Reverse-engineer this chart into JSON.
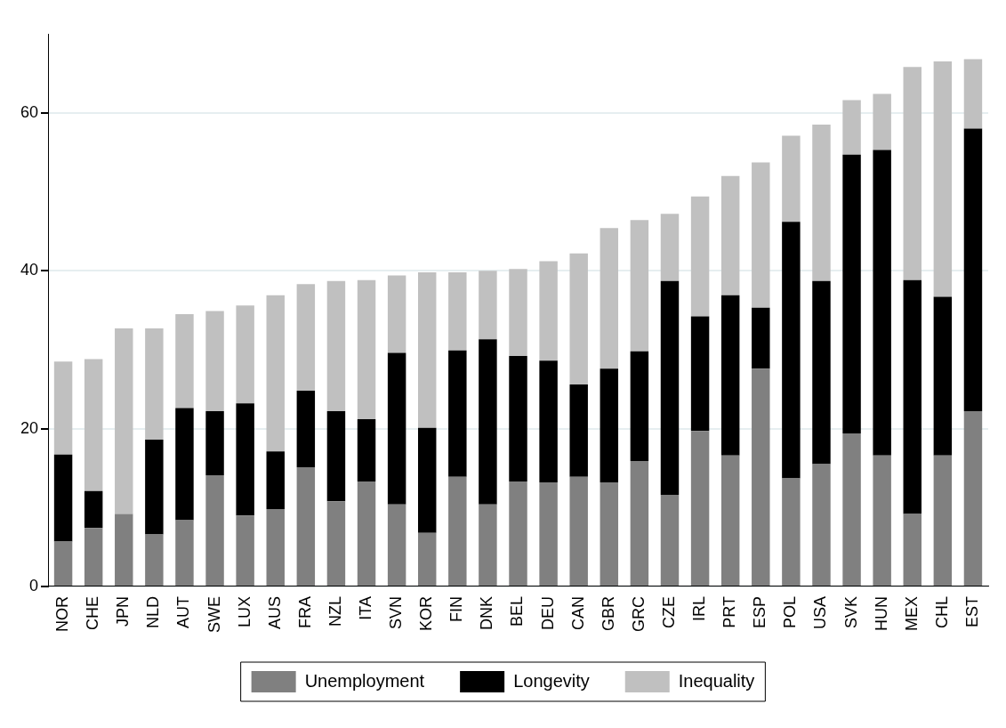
{
  "chart_data": {
    "type": "bar",
    "stacked": true,
    "categories": [
      "NOR",
      "CHE",
      "JPN",
      "NLD",
      "AUT",
      "SWE",
      "LUX",
      "AUS",
      "FRA",
      "NZL",
      "ITA",
      "SVN",
      "KOR",
      "FIN",
      "DNK",
      "BEL",
      "DEU",
      "CAN",
      "GBR",
      "GRC",
      "CZE",
      "IRL",
      "PRT",
      "ESP",
      "POL",
      "USA",
      "SVK",
      "HUN",
      "MEX",
      "CHL",
      "EST"
    ],
    "series": [
      {
        "name": "Unemployment",
        "color": "#808080",
        "values": [
          5.7,
          7.4,
          9.2,
          6.6,
          8.4,
          14.1,
          9.0,
          9.8,
          15.1,
          10.8,
          13.3,
          10.4,
          6.8,
          13.9,
          10.4,
          13.3,
          13.2,
          13.9,
          13.2,
          15.9,
          11.6,
          19.7,
          16.6,
          27.6,
          13.7,
          15.5,
          19.4,
          16.6,
          9.2,
          16.6,
          22.2
        ]
      },
      {
        "name": "Longevity",
        "color": "#000000",
        "values": [
          11.0,
          4.7,
          0,
          12.0,
          14.2,
          8.1,
          14.2,
          7.3,
          9.7,
          11.4,
          7.9,
          19.2,
          13.3,
          16.0,
          20.9,
          15.9,
          15.4,
          11.7,
          14.4,
          13.9,
          27.1,
          14.5,
          20.3,
          7.7,
          32.5,
          23.2,
          35.3,
          38.7,
          29.6,
          20.1,
          35.8
        ]
      },
      {
        "name": "Inequality",
        "color": "#c0c0c0",
        "values": [
          11.8,
          16.7,
          23.5,
          14.1,
          11.9,
          12.7,
          12.4,
          19.8,
          13.5,
          16.5,
          17.6,
          9.8,
          19.7,
          9.9,
          8.7,
          11.0,
          12.6,
          16.6,
          17.8,
          16.6,
          8.5,
          15.2,
          15.1,
          18.4,
          10.9,
          19.8,
          6.9,
          7.1,
          27.0,
          29.8,
          8.8
        ]
      }
    ],
    "ylim": [
      0,
      70
    ],
    "yticks": [
      0,
      20,
      40,
      60
    ],
    "grid": "y",
    "legend": "bottom"
  }
}
